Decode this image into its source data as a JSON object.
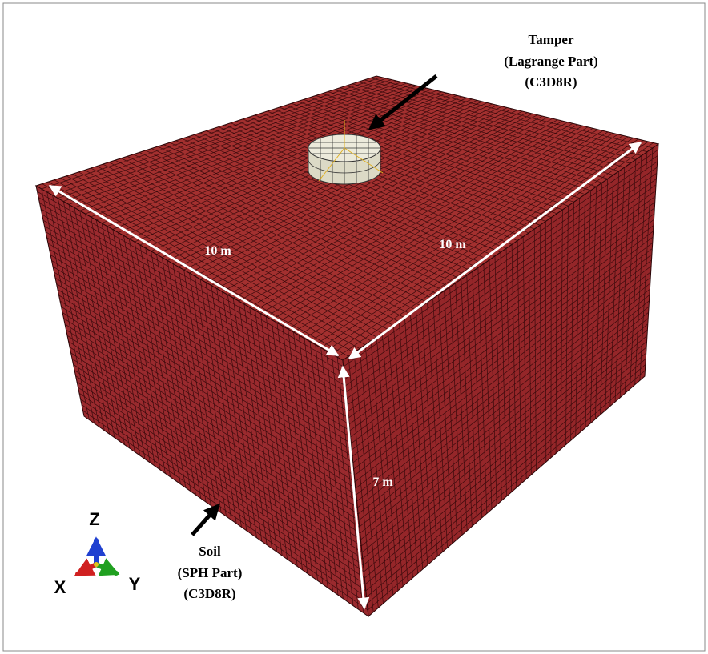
{
  "tamper_label": [
    "Tamper",
    "(Lagrange Part)",
    "(C3D8R)"
  ],
  "soil_label": [
    "Soil",
    "(SPH Part)",
    "(C3D8R)"
  ],
  "dimensions": {
    "top_left_edge": "10 m",
    "top_right_edge": "10 m",
    "height": "7 m"
  },
  "axes": {
    "z": "Z",
    "x": "X",
    "y": "Y"
  }
}
